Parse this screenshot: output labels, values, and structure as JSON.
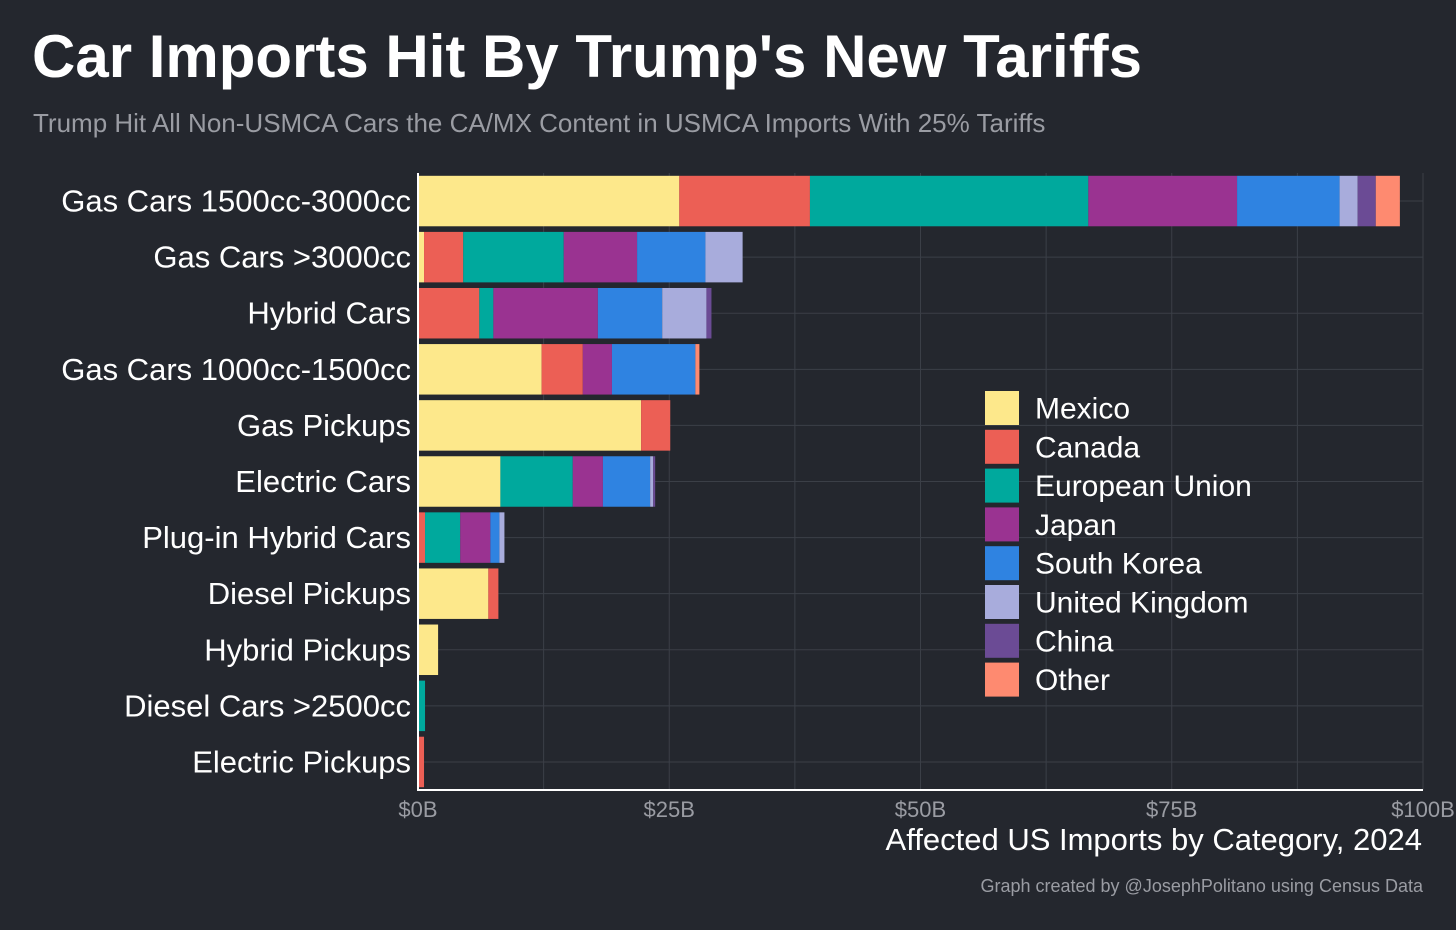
{
  "chart_data": {
    "type": "bar",
    "orientation": "horizontal",
    "stacked": true,
    "title": "Car Imports Hit By Trump's New Tariffs",
    "subtitle": "Trump Hit All Non-USMCA Cars the CA/MX Content in USMCA Imports With 25% Tariffs",
    "xlabel": "Affected US Imports by Category, 2024",
    "caption": "Graph created by @JosephPolitano using Census Data",
    "xlim": [
      0,
      100
    ],
    "x_ticks": [
      0,
      25,
      50,
      75,
      100
    ],
    "x_tick_labels": [
      "$0B",
      "$25B",
      "$50B",
      "$75B",
      "$100B"
    ],
    "grid": true,
    "legend_position": "right-center",
    "categories": [
      "Gas Cars 1500cc-3000cc",
      "Gas Cars >3000cc",
      "Hybrid Cars",
      "Gas Cars 1000cc-1500cc",
      "Gas Pickups",
      "Electric Cars",
      "Plug-in Hybrid Cars",
      "Diesel Pickups",
      "Hybrid Pickups",
      "Diesel Cars >2500cc",
      "Electric Pickups"
    ],
    "series": [
      {
        "name": "Mexico",
        "color": "#fde88b",
        "values": [
          26.0,
          0.6,
          0.0,
          12.3,
          22.2,
          8.2,
          0.0,
          7.0,
          2.0,
          0.0,
          0.0
        ]
      },
      {
        "name": "Canada",
        "color": "#ec5f55",
        "values": [
          13.0,
          3.9,
          6.1,
          4.1,
          2.9,
          0.0,
          0.7,
          1.0,
          0.0,
          0.0,
          0.6
        ]
      },
      {
        "name": "European Union",
        "color": "#00a99d",
        "values": [
          27.7,
          10.0,
          1.4,
          0.0,
          0.0,
          7.2,
          3.5,
          0.0,
          0.0,
          0.7,
          0.0
        ]
      },
      {
        "name": "Japan",
        "color": "#9a3391",
        "values": [
          14.8,
          7.3,
          10.4,
          2.9,
          0.0,
          3.0,
          3.0,
          0.0,
          0.0,
          0.0,
          0.0
        ]
      },
      {
        "name": "South Korea",
        "color": "#2f83e1",
        "values": [
          10.2,
          6.8,
          6.4,
          8.3,
          0.0,
          4.7,
          0.9,
          0.0,
          0.0,
          0.0,
          0.0
        ]
      },
      {
        "name": "United Kingdom",
        "color": "#a8acdc",
        "values": [
          1.8,
          3.7,
          4.4,
          0.0,
          0.0,
          0.3,
          0.5,
          0.0,
          0.0,
          0.0,
          0.0
        ]
      },
      {
        "name": "China",
        "color": "#6b4b95",
        "values": [
          1.8,
          0.0,
          0.5,
          0.0,
          0.0,
          0.2,
          0.0,
          0.0,
          0.0,
          0.0,
          0.0
        ]
      },
      {
        "name": "Other",
        "color": "#fe8a70",
        "values": [
          2.4,
          0.0,
          0.0,
          0.4,
          0.0,
          0.0,
          0.0,
          0.0,
          0.0,
          0.0,
          0.0
        ]
      }
    ]
  }
}
